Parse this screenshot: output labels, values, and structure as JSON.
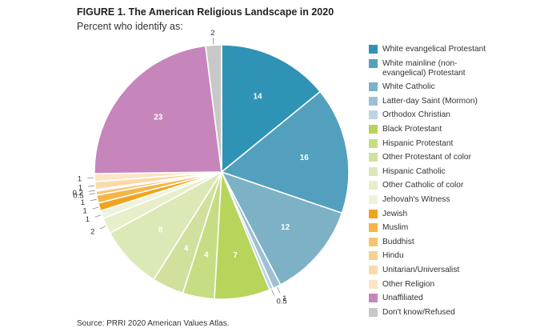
{
  "figure": {
    "title": "FIGURE 1.  The American Religious Landscape in 2020",
    "subtitle": "Percent who identify as:",
    "source": "Source: PRRI 2020 American Values Atlas."
  },
  "chart_data": {
    "type": "pie",
    "title": "FIGURE 1.  The American Religious Landscape in 2020",
    "subtitle": "Percent who identify as:",
    "legend_position": "right",
    "slices": [
      {
        "label": "White evangelical Protestant",
        "value": 14,
        "value_label": "14",
        "color": "#2f93b5"
      },
      {
        "label": "White mainline (non-\nevangelical) Protestant",
        "value": 16,
        "value_label": "16",
        "color": "#52a0bd"
      },
      {
        "label": "White Catholic",
        "value": 12,
        "value_label": "12",
        "color": "#7db1c6"
      },
      {
        "label": "Latter-day Saint (Mormon)",
        "value": 1,
        "value_label": "1",
        "color": "#9fc0d3"
      },
      {
        "label": "Orthodox Christian",
        "value": 0.5,
        "value_label": "0.5",
        "color": "#bdd4e4"
      },
      {
        "label": "Black Protestant",
        "value": 7,
        "value_label": "7",
        "color": "#b6d55a"
      },
      {
        "label": "Hispanic Protestant",
        "value": 4,
        "value_label": "4",
        "color": "#c6dd84"
      },
      {
        "label": "Other Protestant of color",
        "value": 4,
        "value_label": "4",
        "color": "#cfe19d"
      },
      {
        "label": "Hispanic Catholic",
        "value": 8,
        "value_label": "8",
        "color": "#dbe9b7"
      },
      {
        "label": "Other Catholic of color",
        "value": 2,
        "value_label": "2",
        "color": "#e6efc9"
      },
      {
        "label": "Jehovah's Witness",
        "value": 1,
        "value_label": "1",
        "color": "#eef4dc"
      },
      {
        "label": "Jewish",
        "value": 1,
        "value_label": "1",
        "color": "#f0a31c"
      },
      {
        "label": "Muslim",
        "value": 1,
        "value_label": "1",
        "color": "#f5b545"
      },
      {
        "label": "Buddhist",
        "value": 0.5,
        "value_label": "0.5",
        "color": "#f6c46f"
      },
      {
        "label": "Hindu",
        "value": 0.2,
        "value_label": "0.2",
        "color": "#f8d08f"
      },
      {
        "label": "Unitarian/Universalist",
        "value": 1,
        "value_label": "1",
        "color": "#f9dbaa"
      },
      {
        "label": "Other Religion",
        "value": 1,
        "value_label": "1",
        "color": "#fbe5c5"
      },
      {
        "label": "Unaffiliated",
        "value": 23,
        "value_label": "23",
        "color": "#c685bb"
      },
      {
        "label": "Don't know/Refused",
        "value": 2,
        "value_label": "2",
        "color": "#c8c8c8"
      }
    ]
  }
}
